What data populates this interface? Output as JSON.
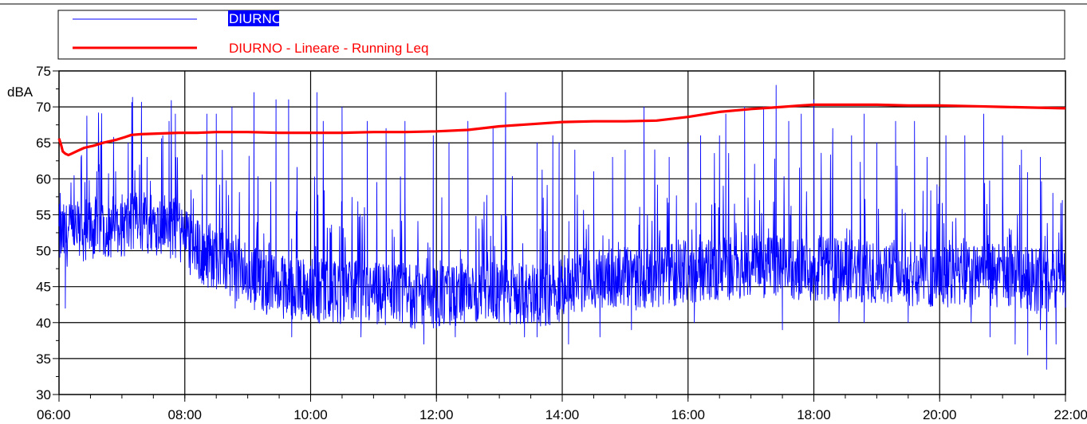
{
  "chart_data": {
    "type": "line",
    "title": "",
    "xlabel": "",
    "ylabel": "dBA",
    "ylim": [
      30,
      75
    ],
    "y_ticks": [
      "30",
      "35",
      "40",
      "45",
      "50",
      "55",
      "60",
      "65",
      "70",
      "75"
    ],
    "x_tick_labels": [
      "06:00",
      "08:00",
      "10:00",
      "12:00",
      "14:00",
      "16:00",
      "18:00",
      "20:00",
      "22:00"
    ],
    "xlim_hours": [
      6,
      22
    ],
    "grid": true,
    "legend_position": "top",
    "colors": {
      "diurno": "#0000ff",
      "running_leq": "#ff0000",
      "grid": "#000000"
    },
    "series": [
      {
        "name": "DIURNO",
        "key": "diurno",
        "baseline_hours": [
          6.0,
          6.5,
          7.0,
          7.5,
          7.9,
          8.2,
          8.6,
          9.0,
          9.5,
          10.0,
          11.0,
          12.0,
          13.0,
          13.9,
          14.2,
          15.0,
          16.0,
          17.0,
          18.0,
          19.0,
          20.0,
          21.0,
          21.7,
          22.0
        ],
        "baseline_db": [
          52.0,
          53.0,
          53.5,
          54.0,
          53.0,
          50.0,
          48.5,
          46.5,
          45.0,
          44.5,
          44.0,
          43.5,
          44.0,
          44.0,
          46.0,
          46.0,
          47.0,
          48.0,
          47.5,
          47.0,
          46.5,
          46.5,
          45.5,
          46.0
        ],
        "peaks": [
          [
            6.02,
            58
          ],
          [
            6.1,
            42
          ],
          [
            6.6,
            61
          ],
          [
            6.9,
            61
          ],
          [
            7.1,
            65
          ],
          [
            7.4,
            63
          ],
          [
            7.65,
            66
          ],
          [
            7.75,
            68
          ],
          [
            7.85,
            69
          ],
          [
            8.35,
            69
          ],
          [
            8.5,
            69
          ],
          [
            8.75,
            70
          ],
          [
            9.1,
            72
          ],
          [
            9.45,
            71
          ],
          [
            9.65,
            71
          ],
          [
            10.1,
            72
          ],
          [
            10.2,
            68
          ],
          [
            10.5,
            70
          ],
          [
            10.9,
            68
          ],
          [
            11.2,
            67
          ],
          [
            11.5,
            68
          ],
          [
            11.95,
            66
          ],
          [
            12.2,
            65
          ],
          [
            12.5,
            68
          ],
          [
            12.9,
            67
          ],
          [
            13.1,
            72
          ],
          [
            13.6,
            65
          ],
          [
            13.85,
            66
          ],
          [
            13.95,
            65
          ],
          [
            14.2,
            64
          ],
          [
            14.5,
            61
          ],
          [
            14.8,
            63
          ],
          [
            15.0,
            64
          ],
          [
            15.3,
            70
          ],
          [
            15.7,
            63
          ],
          [
            16.0,
            65
          ],
          [
            16.2,
            66
          ],
          [
            16.5,
            66
          ],
          [
            16.6,
            69
          ],
          [
            16.9,
            70
          ],
          [
            17.2,
            70
          ],
          [
            17.4,
            73
          ],
          [
            17.6,
            68
          ],
          [
            17.8,
            69
          ],
          [
            18.0,
            71
          ],
          [
            18.3,
            67
          ],
          [
            18.6,
            66
          ],
          [
            18.8,
            69
          ],
          [
            19.0,
            65
          ],
          [
            19.3,
            68
          ],
          [
            19.6,
            68
          ],
          [
            19.8,
            63
          ],
          [
            20.1,
            66
          ],
          [
            20.4,
            66
          ],
          [
            20.7,
            69
          ],
          [
            21.0,
            66
          ],
          [
            21.3,
            64
          ],
          [
            21.6,
            63
          ],
          [
            21.8,
            58
          ],
          [
            21.95,
            57
          ]
        ],
        "dips": [
          [
            6.1,
            42
          ],
          [
            8.8,
            42
          ],
          [
            9.7,
            38
          ],
          [
            10.8,
            38
          ],
          [
            11.8,
            37
          ],
          [
            12.3,
            38
          ],
          [
            13.4,
            38
          ],
          [
            13.6,
            38
          ],
          [
            14.1,
            37
          ],
          [
            14.6,
            38
          ],
          [
            15.1,
            39
          ],
          [
            16.1,
            40
          ],
          [
            17.5,
            39
          ],
          [
            18.4,
            40
          ],
          [
            18.8,
            40
          ],
          [
            19.5,
            40
          ],
          [
            20.5,
            40
          ],
          [
            20.8,
            38
          ],
          [
            21.2,
            37
          ],
          [
            21.4,
            35.5
          ],
          [
            21.6,
            39
          ],
          [
            21.7,
            33.5
          ],
          [
            21.85,
            37
          ]
        ]
      },
      {
        "name": "DIURNO - Lineare - Running Leq",
        "key": "running_leq",
        "x_hours": [
          6.0,
          6.03,
          6.06,
          6.1,
          6.15,
          6.2,
          6.3,
          6.4,
          6.55,
          6.7,
          6.9,
          7.05,
          7.15,
          7.3,
          7.6,
          7.9,
          8.2,
          8.5,
          9.0,
          9.5,
          10.0,
          10.5,
          11.0,
          11.5,
          12.0,
          12.5,
          13.0,
          13.5,
          14.0,
          14.5,
          15.0,
          15.5,
          16.0,
          16.5,
          17.0,
          17.5,
          17.8,
          18.0,
          18.5,
          19.0,
          19.5,
          20.0,
          20.5,
          21.0,
          21.5,
          22.0
        ],
        "y_db": [
          65.6,
          64.8,
          63.8,
          63.5,
          63.3,
          63.5,
          63.9,
          64.3,
          64.6,
          65.0,
          65.4,
          65.8,
          66.1,
          66.2,
          66.3,
          66.4,
          66.4,
          66.5,
          66.5,
          66.4,
          66.4,
          66.4,
          66.5,
          66.5,
          66.6,
          66.8,
          67.3,
          67.6,
          67.9,
          68.0,
          68.0,
          68.1,
          68.6,
          69.3,
          69.7,
          70.0,
          70.2,
          70.3,
          70.3,
          70.3,
          70.2,
          70.2,
          70.1,
          70.0,
          69.9,
          69.8
        ]
      }
    ]
  }
}
